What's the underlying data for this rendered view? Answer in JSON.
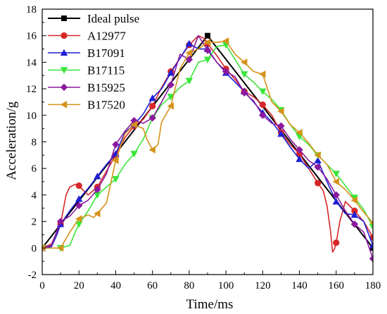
{
  "chart_data": {
    "type": "line",
    "xlabel": "Time/ms",
    "ylabel": "Acceleration/g",
    "xlim": [
      0,
      180
    ],
    "ylim": [
      -2,
      18
    ],
    "xticks": [
      0,
      20,
      40,
      60,
      80,
      100,
      120,
      140,
      160,
      180
    ],
    "yticks": [
      -2,
      0,
      2,
      4,
      6,
      8,
      10,
      12,
      14,
      16,
      18
    ],
    "grid": false,
    "legend_position": "top-left",
    "series": [
      {
        "name": "Ideal pulse",
        "color": "#000000",
        "marker": "square",
        "x": [
          0,
          90,
          180
        ],
        "y": [
          0,
          16,
          0
        ],
        "marker_x": [
          0,
          90,
          180
        ],
        "marker_y": [
          0,
          16,
          0
        ]
      },
      {
        "name": "A12977",
        "color": "#d62728",
        "marker": "circle",
        "x": [
          0,
          5,
          10,
          13,
          15,
          18,
          20,
          22,
          25,
          30,
          35,
          40,
          45,
          50,
          55,
          60,
          65,
          70,
          75,
          80,
          85,
          88,
          90,
          95,
          100,
          105,
          110,
          115,
          120,
          125,
          130,
          135,
          140,
          145,
          150,
          153,
          155,
          157,
          158,
          159,
          160,
          162,
          165,
          170,
          175,
          180
        ],
        "y": [
          0,
          0.3,
          1.8,
          4.0,
          4.6,
          4.8,
          4.7,
          4.4,
          4.0,
          4.6,
          5.8,
          7.0,
          8.3,
          9.2,
          9.7,
          10.7,
          12.1,
          13.3,
          14.3,
          15.3,
          16.0,
          15.8,
          15.4,
          14.5,
          13.5,
          12.7,
          11.8,
          11.4,
          10.8,
          10.0,
          8.7,
          7.8,
          7.1,
          6.0,
          4.9,
          4.3,
          3.2,
          1.2,
          -0.3,
          -0.1,
          0.4,
          2.0,
          3.5,
          2.8,
          2.0,
          0.8
        ],
        "marker_x": [
          10,
          20,
          30,
          40,
          50,
          60,
          70,
          80,
          90,
          100,
          110,
          120,
          130,
          140,
          150,
          160,
          170,
          180
        ],
        "marker_y": [
          1.8,
          4.7,
          4.6,
          7.0,
          9.2,
          10.7,
          13.3,
          15.3,
          15.4,
          13.5,
          11.8,
          10.8,
          8.7,
          7.1,
          4.9,
          0.4,
          2.8,
          0.8
        ]
      },
      {
        "name": "B17091",
        "color": "#1f1fd6",
        "marker": "triangle-up",
        "x": [
          0,
          5,
          8,
          10,
          15,
          20,
          25,
          30,
          35,
          40,
          45,
          50,
          55,
          60,
          65,
          70,
          75,
          80,
          85,
          90,
          95,
          100,
          105,
          110,
          115,
          120,
          125,
          130,
          135,
          140,
          145,
          150,
          155,
          160,
          165,
          170,
          175,
          180
        ],
        "y": [
          0,
          0.1,
          1.0,
          1.8,
          2.8,
          3.7,
          4.5,
          5.4,
          6.3,
          7.1,
          8.7,
          9.3,
          10.1,
          11.3,
          12.0,
          13.2,
          14.3,
          15.4,
          15.0,
          15.0,
          14.0,
          13.2,
          12.5,
          11.8,
          11.0,
          10.2,
          9.5,
          8.6,
          7.6,
          6.7,
          6.0,
          6.6,
          5.0,
          3.5,
          2.6,
          2.5,
          2.0,
          0.2
        ],
        "marker_x": [
          0,
          10,
          20,
          30,
          40,
          50,
          60,
          70,
          80,
          90,
          100,
          110,
          120,
          130,
          140,
          150,
          160,
          170,
          180
        ],
        "marker_y": [
          0,
          1.8,
          3.7,
          5.4,
          7.1,
          9.3,
          11.3,
          13.2,
          15.4,
          15.0,
          13.2,
          11.8,
          10.2,
          8.6,
          6.7,
          6.6,
          3.5,
          2.5,
          0.2
        ]
      },
      {
        "name": "B17115",
        "color": "#39e639",
        "marker": "triangle-down",
        "x": [
          0,
          5,
          10,
          15,
          18,
          20,
          25,
          30,
          35,
          40,
          45,
          50,
          55,
          60,
          65,
          70,
          75,
          80,
          85,
          90,
          95,
          100,
          105,
          110,
          115,
          120,
          125,
          130,
          135,
          140,
          145,
          150,
          155,
          160,
          165,
          170,
          175,
          180
        ],
        "y": [
          0,
          0,
          0,
          0.2,
          1.2,
          1.8,
          2.8,
          4.0,
          4.6,
          5.2,
          6.3,
          7.1,
          8.2,
          9.8,
          10.8,
          11.4,
          12.1,
          12.6,
          14.0,
          14.2,
          15.2,
          15.3,
          14.2,
          13.1,
          12.5,
          11.8,
          11.2,
          10.4,
          9.3,
          8.4,
          7.8,
          7.0,
          6.3,
          5.6,
          4.7,
          3.8,
          2.9,
          1.6
        ],
        "marker_x": [
          0,
          10,
          20,
          30,
          40,
          50,
          60,
          70,
          80,
          90,
          100,
          110,
          120,
          130,
          140,
          150,
          160,
          170,
          180
        ],
        "marker_y": [
          0,
          0,
          1.8,
          4.0,
          5.2,
          7.1,
          9.8,
          11.4,
          12.6,
          14.2,
          15.3,
          13.1,
          11.8,
          10.4,
          8.4,
          7.0,
          5.6,
          3.8,
          1.6
        ]
      },
      {
        "name": "B15925",
        "color": "#8b1a9e",
        "marker": "diamond",
        "x": [
          0,
          5,
          10,
          15,
          20,
          25,
          30,
          35,
          40,
          45,
          50,
          55,
          60,
          65,
          70,
          75,
          80,
          85,
          90,
          95,
          100,
          105,
          110,
          115,
          120,
          125,
          130,
          135,
          140,
          145,
          150,
          155,
          160,
          165,
          170,
          175,
          180
        ],
        "y": [
          0,
          0.2,
          2.0,
          2.4,
          3.2,
          3.6,
          4.4,
          5.6,
          7.8,
          8.8,
          9.6,
          9.4,
          9.8,
          11.0,
          12.3,
          14.6,
          14.2,
          16.0,
          14.9,
          14.0,
          13.3,
          12.9,
          11.7,
          11.1,
          10.0,
          9.4,
          9.2,
          8.2,
          7.4,
          6.6,
          6.1,
          5.2,
          4.0,
          2.8,
          1.8,
          1.2,
          -0.8
        ],
        "marker_x": [
          10,
          20,
          30,
          40,
          50,
          60,
          70,
          80,
          90,
          100,
          110,
          120,
          130,
          140,
          150,
          160,
          170,
          180
        ],
        "marker_y": [
          2.0,
          3.2,
          4.4,
          7.8,
          9.6,
          9.8,
          12.3,
          14.2,
          14.9,
          13.3,
          11.7,
          10.0,
          9.2,
          7.4,
          6.1,
          4.0,
          1.8,
          -0.8
        ]
      },
      {
        "name": "B17520",
        "color": "#d4921a",
        "marker": "triangle-left",
        "x": [
          0,
          5,
          10,
          15,
          20,
          25,
          28,
          30,
          35,
          40,
          45,
          50,
          55,
          57,
          60,
          63,
          65,
          70,
          75,
          80,
          85,
          90,
          95,
          100,
          105,
          110,
          115,
          120,
          125,
          130,
          135,
          140,
          145,
          150,
          155,
          160,
          165,
          170,
          175,
          180
        ],
        "y": [
          0,
          0,
          0,
          1.2,
          2.2,
          2.5,
          2.3,
          2.6,
          3.4,
          6.6,
          8.6,
          9.3,
          9.0,
          8.2,
          7.4,
          7.8,
          9.5,
          10.7,
          13.5,
          14.7,
          15.0,
          15.5,
          15.5,
          15.6,
          14.6,
          14.0,
          13.3,
          13.1,
          11.0,
          10.3,
          9.3,
          8.7,
          7.9,
          7.0,
          6.3,
          5.0,
          4.4,
          3.6,
          2.7,
          1.9
        ],
        "marker_x": [
          0,
          10,
          20,
          30,
          40,
          50,
          60,
          70,
          80,
          90,
          100,
          110,
          120,
          130,
          140,
          150,
          160,
          170,
          180
        ],
        "marker_y": [
          0,
          0,
          2.2,
          2.6,
          6.6,
          9.3,
          7.4,
          10.7,
          14.7,
          15.5,
          15.6,
          14.0,
          13.1,
          10.3,
          8.7,
          7.0,
          5.0,
          3.6,
          1.9
        ]
      }
    ]
  }
}
